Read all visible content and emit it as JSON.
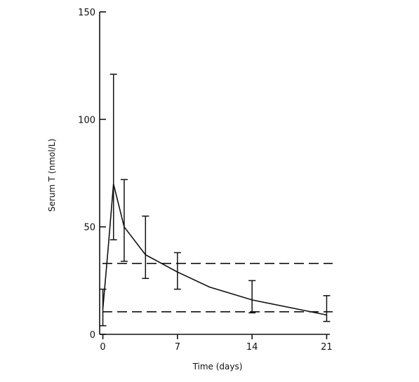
{
  "chart_data": {
    "type": "line",
    "title": "",
    "xlabel": "Time (days)",
    "ylabel": "Serum T (nmol/L)",
    "xlim": [
      -0.3,
      21.3
    ],
    "ylim": [
      0,
      150
    ],
    "x_ticks": [
      0,
      7,
      14,
      21
    ],
    "y_ticks": [
      0,
      50,
      100,
      150
    ],
    "grid": false,
    "series": [
      {
        "points": [
          {
            "x": 0,
            "y": 12,
            "lo": 4,
            "hi": 21
          },
          {
            "x": 0.5,
            "y": 40
          },
          {
            "x": 1,
            "y": 70,
            "lo": 44,
            "hi": 121
          },
          {
            "x": 2,
            "y": 50,
            "lo": 34,
            "hi": 72
          },
          {
            "x": 4,
            "y": 37,
            "lo": 26,
            "hi": 55
          },
          {
            "x": 7,
            "y": 29,
            "lo": 21,
            "hi": 38
          },
          {
            "x": 10,
            "y": 22
          },
          {
            "x": 14,
            "y": 16,
            "lo": 10,
            "hi": 25
          },
          {
            "x": 21,
            "y": 9,
            "lo": 6,
            "hi": 18
          }
        ]
      }
    ],
    "reference_lines": [
      {
        "y": 33,
        "style": "dashed"
      },
      {
        "y": 10.5,
        "style": "dashed"
      }
    ]
  }
}
